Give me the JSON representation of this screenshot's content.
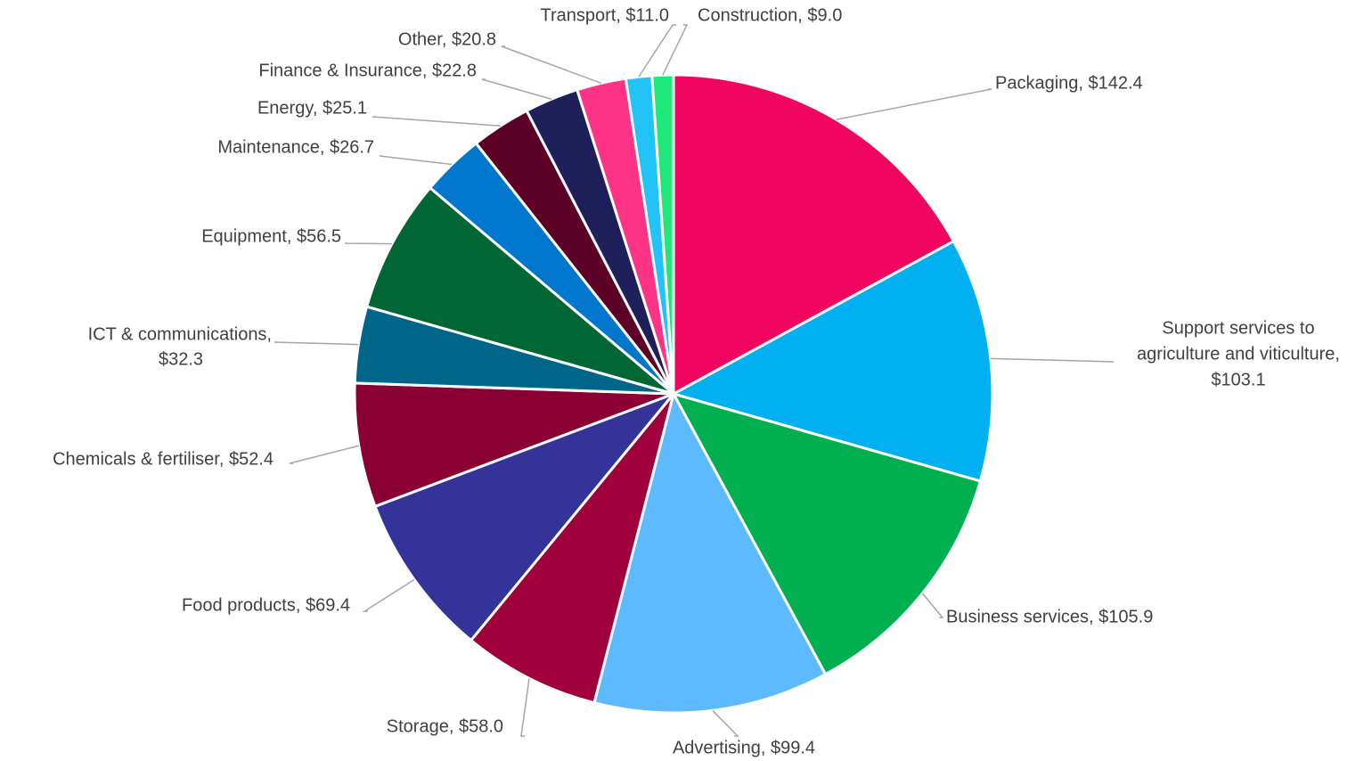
{
  "chart_data": {
    "type": "pie",
    "labels": [
      [
        "Packaging, $142.4"
      ],
      [
        "Support services to",
        "agriculture and viticulture,",
        "$103.1"
      ],
      [
        "Business services, $105.9"
      ],
      [
        "Advertising, $99.4"
      ],
      [
        "Storage, $58.0"
      ],
      [
        "Food products, $69.4"
      ],
      [
        "Chemicals & fertiliser, $52.4"
      ],
      [
        "ICT & communications,",
        "$32.3"
      ],
      [
        "Equipment, $56.5"
      ],
      [
        "Maintenance, $26.7"
      ],
      [
        "Energy, $25.1"
      ],
      [
        "Finance & Insurance, $22.8"
      ],
      [
        "Other, $20.8"
      ],
      [
        "Transport, $11.0"
      ],
      [
        "Construction, $9.0"
      ]
    ],
    "values": [
      142.4,
      103.1,
      105.9,
      99.4,
      58.0,
      69.4,
      52.4,
      32.3,
      56.5,
      26.7,
      25.1,
      22.8,
      20.8,
      11.0,
      9.0
    ],
    "colors": [
      "#f0055f",
      "#00b0f0",
      "#00b050",
      "#5ebaff",
      "#a0003c",
      "#333399",
      "#8b0033",
      "#006689",
      "#006633",
      "#0077cc",
      "#5c0028",
      "#1f1f5c",
      "#ff3385",
      "#22c3f7",
      "#1ee87a"
    ]
  }
}
